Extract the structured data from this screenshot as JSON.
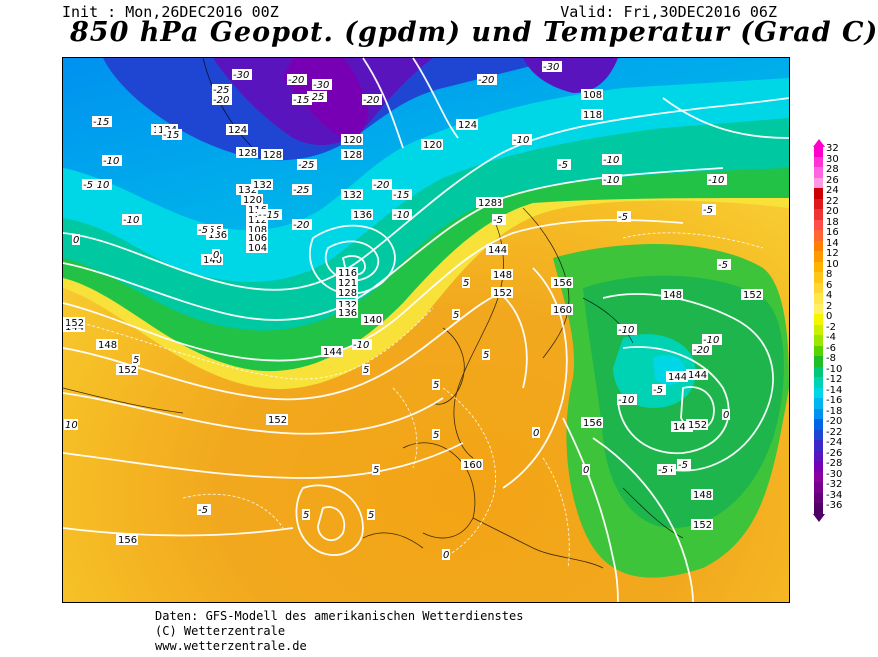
{
  "header": {
    "init": "Init : Mon,26DEC2016 00Z",
    "valid": "Valid: Fri,30DEC2016 06Z",
    "title": "850 hPa Geopot. (gpdm) und Temperatur (Grad C)"
  },
  "footer": {
    "line1": "Daten: GFS-Modell des amerikanischen Wetterdienstes",
    "line2": "(C) Wetterzentrale",
    "line3": "www.wetterzentrale.de"
  },
  "legend": {
    "levels": [
      {
        "label": "32",
        "color": "#ff00cc"
      },
      {
        "label": "30",
        "color": "#ff33d6"
      },
      {
        "label": "28",
        "color": "#ff66e0"
      },
      {
        "label": "26",
        "color": "#ff99e6"
      },
      {
        "label": "24",
        "color": "#cc0000"
      },
      {
        "label": "22",
        "color": "#e01a1a"
      },
      {
        "label": "20",
        "color": "#f03333"
      },
      {
        "label": "18",
        "color": "#ff4d4d"
      },
      {
        "label": "16",
        "color": "#ff6633"
      },
      {
        "label": "14",
        "color": "#ff8000"
      },
      {
        "label": "12",
        "color": "#ff9900"
      },
      {
        "label": "10",
        "color": "#ffb300"
      },
      {
        "label": "8",
        "color": "#ffc61a"
      },
      {
        "label": "6",
        "color": "#ffd633"
      },
      {
        "label": "4",
        "color": "#ffe64d"
      },
      {
        "label": "2",
        "color": "#fff066"
      },
      {
        "label": "0",
        "color": "#f5f500"
      },
      {
        "label": "-2",
        "color": "#c8f000"
      },
      {
        "label": "-4",
        "color": "#9ee600"
      },
      {
        "label": "-6",
        "color": "#5ad200"
      },
      {
        "label": "-8",
        "color": "#1ebe28"
      },
      {
        "label": "-10",
        "color": "#00c878"
      },
      {
        "label": "-12",
        "color": "#00d2b4"
      },
      {
        "label": "-14",
        "color": "#00d7e6"
      },
      {
        "label": "-16",
        "color": "#00b4f0"
      },
      {
        "label": "-18",
        "color": "#0091f0"
      },
      {
        "label": "-20",
        "color": "#0064e6"
      },
      {
        "label": "-22",
        "color": "#1e46d2"
      },
      {
        "label": "-24",
        "color": "#3c28c8"
      },
      {
        "label": "-26",
        "color": "#5a14be"
      },
      {
        "label": "-28",
        "color": "#7800b4"
      },
      {
        "label": "-30",
        "color": "#8c00a0"
      },
      {
        "label": "-32",
        "color": "#78008c"
      },
      {
        "label": "-34",
        "color": "#640078"
      },
      {
        "label": "-36",
        "color": "#500064"
      }
    ]
  },
  "map": {
    "geopotential_labels": [
      "124",
      "124",
      "128",
      "132",
      "136",
      "140",
      "144",
      "148",
      "152",
      "152",
      "156",
      "120",
      "116",
      "112",
      "108",
      "106",
      "104",
      "116",
      "121",
      "128",
      "132",
      "136",
      "140",
      "144",
      "152",
      "124",
      "128",
      "120",
      "128",
      "144",
      "148",
      "152",
      "156",
      "160",
      "148",
      "152",
      "144",
      "140",
      "152",
      "156",
      "160",
      "144",
      "148",
      "152",
      "136",
      "132",
      "128",
      "120",
      "118",
      "108",
      "124",
      "128",
      "132",
      "136"
    ],
    "temperature_labels": [
      "-30",
      "-25",
      "-20",
      "-25",
      "-20",
      "-30",
      "-20",
      "-20",
      "-15",
      "-15",
      "-10",
      "-10",
      "-15",
      "-15",
      "-10",
      "-10",
      "-5",
      "-5",
      "-10",
      "-10",
      "-5",
      "-5",
      "-10",
      "-10",
      "-5",
      "-15",
      "-20",
      "-25",
      "-30",
      "-25",
      "-20",
      "-15",
      "-10",
      "-5",
      "-5",
      "0",
      "0",
      "5",
      "5",
      "5",
      "5",
      "5",
      "5",
      "5",
      "10",
      "5",
      "5",
      "0",
      "0",
      "5",
      "0",
      "-5",
      "-10",
      "-10",
      "-5",
      "-5",
      "0",
      "-20",
      "-15",
      "-10",
      "-5",
      "-5"
    ]
  }
}
